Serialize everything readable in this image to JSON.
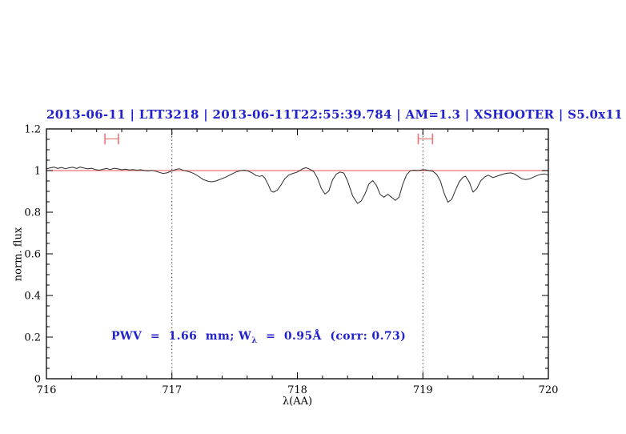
{
  "annotation": {
    "prefix": "PWV  =  1.66  mm; W",
    "subscript": "λ",
    "suffix": "  =  0.95Å  (corr: 0.73)",
    "color": "#2222cc"
  },
  "chart_data": {
    "type": "line",
    "title": "2013-06-11 | LTT3218 | 2013-06-11T22:55:39.784 | AM=1.3 | XSHOOTER | S5.0x11",
    "title_color": "#2222cc",
    "xlabel": "λ(AA)",
    "ylabel": "norm. flux",
    "xlim": [
      716,
      720
    ],
    "ylim": [
      0,
      1.2
    ],
    "grid": "off",
    "legend": "none",
    "x_major_ticks": [
      716,
      717,
      718,
      719,
      720
    ],
    "x_tick_labels": [
      "716",
      "717",
      "718",
      "719",
      "720"
    ],
    "x_minor_step": 0.2,
    "y_major_ticks": [
      0,
      0.2,
      0.4,
      0.6,
      0.8,
      1,
      1.2
    ],
    "y_tick_labels": [
      "0",
      "0.2",
      "0.4",
      "0.6",
      "0.8",
      "1",
      "1.2"
    ],
    "y_minor_step": 0.05,
    "frame_color": "#000000",
    "guide_lines_x": [
      717,
      719
    ],
    "guide_line_color": "#444444",
    "continuum_line": {
      "y": 1.0,
      "color": "#ee7373"
    },
    "markers": [
      {
        "x": 716.52,
        "y": 1.152,
        "half_width": 0.054,
        "cap_half_height": 0.026,
        "color": "#ee7373"
      },
      {
        "x": 719.02,
        "y": 1.152,
        "half_width": 0.057,
        "cap_half_height": 0.026,
        "color": "#ee7373"
      }
    ],
    "series": [
      {
        "name": "observed normalized spectrum",
        "color": "#2b2b2b",
        "x": [
          716.0,
          716.03,
          716.06,
          716.09,
          716.12,
          716.15,
          716.18,
          716.21,
          716.24,
          716.27,
          716.3,
          716.33,
          716.36,
          716.39,
          716.42,
          716.45,
          716.48,
          716.51,
          716.54,
          716.57,
          716.6,
          716.63,
          716.66,
          716.69,
          716.72,
          716.75,
          716.78,
          716.81,
          716.84,
          716.87,
          716.9,
          716.93,
          716.96,
          716.99,
          717.02,
          717.04,
          717.06,
          717.09,
          717.12,
          717.15,
          717.18,
          717.21,
          717.25,
          717.29,
          717.32,
          717.35,
          717.39,
          717.43,
          717.47,
          717.51,
          717.55,
          717.58,
          717.61,
          717.64,
          717.67,
          717.7,
          717.72,
          717.74,
          717.77,
          717.79,
          717.81,
          717.84,
          717.87,
          717.9,
          717.93,
          717.96,
          718.0,
          718.04,
          718.07,
          718.1,
          718.13,
          718.16,
          718.19,
          718.22,
          718.25,
          718.28,
          718.31,
          718.34,
          718.37,
          718.4,
          718.44,
          718.48,
          718.51,
          718.54,
          718.57,
          718.6,
          718.63,
          718.66,
          718.69,
          718.72,
          718.75,
          718.78,
          718.81,
          718.84,
          718.87,
          718.9,
          718.93,
          718.96,
          718.99,
          719.02,
          719.05,
          719.08,
          719.11,
          719.14,
          719.17,
          719.2,
          719.23,
          719.26,
          719.29,
          719.32,
          719.34,
          719.37,
          719.4,
          719.43,
          719.46,
          719.49,
          719.52,
          719.56,
          719.6,
          719.64,
          719.67,
          719.7,
          719.73,
          719.76,
          719.79,
          719.82,
          719.85,
          719.88,
          719.91,
          719.94,
          719.97,
          720.0
        ],
        "y": [
          1.008,
          1.013,
          1.017,
          1.01,
          1.015,
          1.009,
          1.013,
          1.016,
          1.01,
          1.017,
          1.012,
          1.008,
          1.011,
          1.005,
          1.002,
          1.006,
          1.01,
          1.005,
          1.011,
          1.008,
          1.004,
          1.007,
          1.003,
          1.005,
          1.002,
          1.004,
          1.0,
          0.998,
          1.001,
          0.997,
          0.991,
          0.986,
          0.989,
          0.996,
          1.003,
          1.007,
          1.009,
          1.001,
          0.997,
          0.992,
          0.984,
          0.973,
          0.957,
          0.948,
          0.946,
          0.95,
          0.959,
          0.969,
          0.981,
          0.993,
          1.0,
          1.002,
          0.997,
          0.988,
          0.976,
          0.972,
          0.976,
          0.965,
          0.93,
          0.901,
          0.896,
          0.906,
          0.931,
          0.961,
          0.978,
          0.985,
          0.993,
          1.008,
          1.014,
          1.006,
          0.995,
          0.964,
          0.915,
          0.887,
          0.901,
          0.955,
          0.983,
          0.993,
          0.988,
          0.95,
          0.878,
          0.842,
          0.855,
          0.889,
          0.935,
          0.952,
          0.928,
          0.885,
          0.872,
          0.886,
          0.872,
          0.857,
          0.872,
          0.935,
          0.98,
          0.999,
          1.002,
          1.0,
          1.003,
          1.004,
          1.0,
          0.996,
          0.982,
          0.949,
          0.89,
          0.848,
          0.862,
          0.906,
          0.946,
          0.968,
          0.973,
          0.945,
          0.896,
          0.914,
          0.95,
          0.968,
          0.978,
          0.966,
          0.975,
          0.983,
          0.987,
          0.989,
          0.984,
          0.972,
          0.96,
          0.957,
          0.96,
          0.968,
          0.976,
          0.982,
          0.984,
          0.978
        ]
      }
    ]
  }
}
